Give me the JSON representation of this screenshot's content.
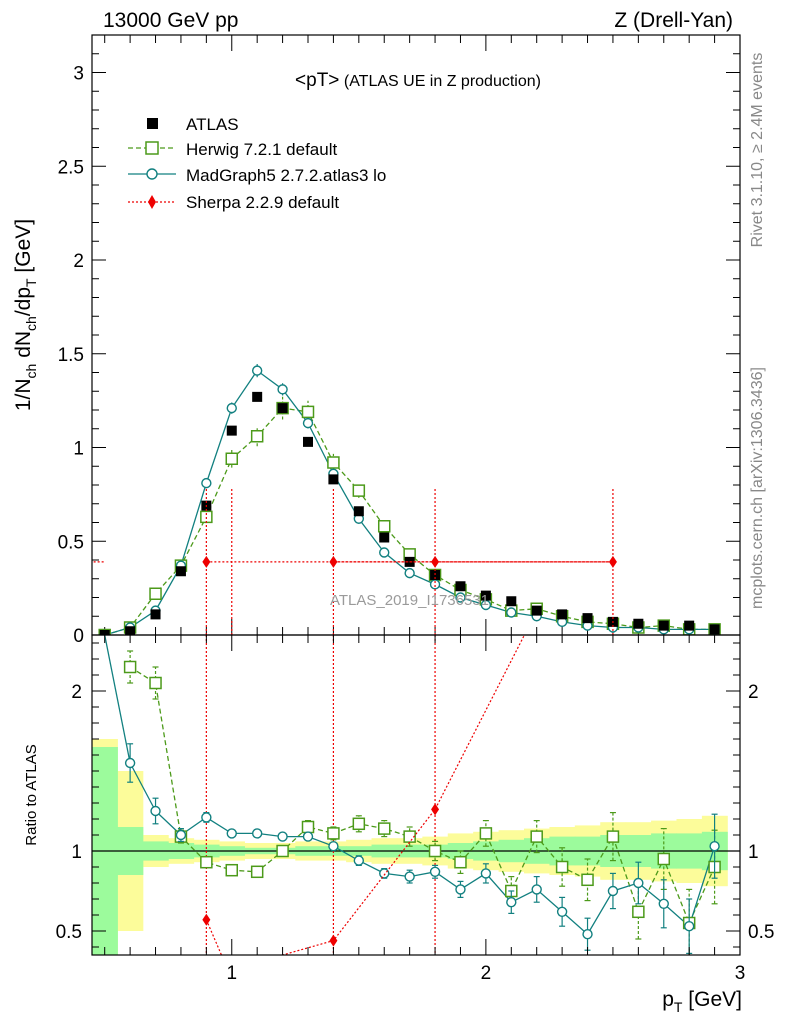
{
  "header": {
    "left": "13000 GeV pp",
    "right": "Z (Drell-Yan)"
  },
  "side": {
    "rivet": "Rivet 3.1.10, ≥ 2.4M events",
    "mcplots": "mcplots.cern.ch [arXiv:1306.3436]"
  },
  "colors": {
    "atlas": "#000000",
    "herwig": "#4c9a1a",
    "madgraph": "#128080",
    "sherpa": "#ee0000",
    "band_inner": "#9cfb9c",
    "band_outer": "#fcfc9a"
  },
  "chart_data": [
    {
      "type": "line",
      "panel": "main",
      "title": "<pT> (ATLAS UE in Z production)",
      "title_main": "<pT>",
      "title_sub": "(ATLAS UE in Z production)",
      "ylabel": "1/N_ch dN_ch/dp_T [GeV]",
      "xlabel": "",
      "xlim": [
        0.45,
        3.0
      ],
      "ylim": [
        0,
        3.2
      ],
      "yticks": [
        "0",
        "0.5",
        "1",
        "1.5",
        "2",
        "2.5",
        "3"
      ],
      "watermark": "ATLAS_2019_I1736531",
      "x": [
        0.5,
        0.6,
        0.7,
        0.8,
        0.9,
        1.0,
        1.1,
        1.2,
        1.3,
        1.4,
        1.5,
        1.6,
        1.7,
        1.8,
        1.9,
        2.0,
        2.1,
        2.2,
        2.3,
        2.4,
        2.5,
        2.6,
        2.7,
        2.8,
        2.9
      ],
      "series": [
        {
          "name": "ATLAS",
          "style": "data",
          "values": [
            0.0,
            0.02,
            0.11,
            0.34,
            0.69,
            1.09,
            1.27,
            1.21,
            1.03,
            0.83,
            0.66,
            0.52,
            0.39,
            0.32,
            0.26,
            0.21,
            0.18,
            0.13,
            0.11,
            0.09,
            0.07,
            0.06,
            0.05,
            0.05,
            0.03
          ]
        },
        {
          "name": "Herwig 7.2.1 default",
          "style": "herwig",
          "values": [
            0.0,
            0.04,
            0.22,
            0.37,
            0.63,
            0.94,
            1.06,
            1.21,
            1.19,
            0.92,
            0.77,
            0.58,
            0.43,
            0.32,
            0.24,
            0.19,
            0.13,
            0.14,
            0.1,
            0.07,
            0.06,
            0.04,
            0.05,
            0.03,
            0.03
          ]
        },
        {
          "name": "MadGraph5 2.7.2.atlas3 lo",
          "style": "madgraph",
          "values": [
            0.0,
            0.04,
            0.13,
            0.37,
            0.81,
            1.21,
            1.41,
            1.31,
            1.13,
            0.86,
            0.62,
            0.44,
            0.33,
            0.27,
            0.2,
            0.16,
            0.12,
            0.1,
            0.07,
            0.05,
            0.04,
            0.04,
            0.03,
            0.03,
            0.03
          ]
        },
        {
          "name": "Sherpa 2.2.9 default",
          "style": "sherpa",
          "x": [
            0.9,
            1.4,
            1.8,
            2.5
          ],
          "xerr": [
            [
              0.0,
              0.5
            ],
            [
              0.9,
              1.8
            ],
            [
              1.4,
              2.5
            ],
            [
              1.8,
              2.5
            ]
          ],
          "values": [
            0.39,
            0.39,
            0.39,
            0.39
          ],
          "yerr_high": 0.78
        }
      ]
    },
    {
      "type": "line",
      "panel": "ratio",
      "ylabel": "Ratio to ATLAS",
      "xlabel": "p_T [GeV]",
      "xlim": [
        0.45,
        3.0
      ],
      "ylim": [
        0.35,
        2.35
      ],
      "xticks": [
        "1",
        "2",
        "3"
      ],
      "yticks": [
        "0.5",
        "1",
        "2"
      ],
      "x": [
        0.5,
        0.6,
        0.7,
        0.8,
        0.9,
        1.0,
        1.1,
        1.2,
        1.3,
        1.4,
        1.5,
        1.6,
        1.7,
        1.8,
        1.9,
        2.0,
        2.1,
        2.2,
        2.3,
        2.4,
        2.5,
        2.6,
        2.7,
        2.8,
        2.9
      ],
      "band_inner": [
        0.65,
        0.15,
        0.06,
        0.05,
        0.04,
        0.03,
        0.02,
        0.02,
        0.03,
        0.03,
        0.03,
        0.04,
        0.04,
        0.04,
        0.05,
        0.06,
        0.07,
        0.08,
        0.09,
        0.09,
        0.1,
        0.1,
        0.11,
        0.11,
        0.12
      ],
      "band_outer": [
        0.7,
        0.5,
        0.1,
        0.08,
        0.07,
        0.06,
        0.05,
        0.05,
        0.06,
        0.06,
        0.07,
        0.08,
        0.08,
        0.09,
        0.11,
        0.12,
        0.13,
        0.14,
        0.15,
        0.16,
        0.18,
        0.18,
        0.19,
        0.2,
        0.22
      ],
      "series": [
        {
          "name": "Herwig 7.2.1 default",
          "style": "herwig",
          "values": [
            null,
            2.15,
            2.05,
            1.09,
            0.93,
            0.88,
            0.87,
            1.0,
            1.15,
            1.11,
            1.17,
            1.14,
            1.09,
            1.0,
            0.93,
            1.11,
            0.75,
            1.09,
            0.9,
            0.82,
            1.09,
            0.62,
            0.95,
            0.55,
            0.9
          ],
          "err": [
            0,
            0.1,
            0.1,
            0.04,
            0.03,
            0.03,
            0.03,
            0.03,
            0.04,
            0.04,
            0.05,
            0.05,
            0.06,
            0.06,
            0.07,
            0.08,
            0.09,
            0.1,
            0.12,
            0.13,
            0.15,
            0.17,
            0.19,
            0.21,
            0.23
          ]
        },
        {
          "name": "MadGraph5 2.7.2.atlas3 lo",
          "style": "madgraph",
          "values": [
            null,
            1.55,
            1.25,
            1.1,
            1.21,
            1.11,
            1.11,
            1.09,
            1.09,
            1.03,
            0.94,
            0.86,
            0.84,
            0.87,
            0.76,
            0.86,
            0.68,
            0.76,
            0.62,
            0.48,
            0.75,
            0.8,
            0.67,
            0.53,
            1.03
          ],
          "err": [
            0,
            0.12,
            0.08,
            0.04,
            0.03,
            0.02,
            0.02,
            0.02,
            0.02,
            0.02,
            0.03,
            0.03,
            0.04,
            0.04,
            0.05,
            0.06,
            0.07,
            0.08,
            0.09,
            0.1,
            0.11,
            0.13,
            0.15,
            0.17,
            0.2
          ]
        },
        {
          "name": "Sherpa 2.2.9 default",
          "style": "sherpa",
          "x": [
            0.9,
            1.4,
            1.8
          ],
          "values": [
            0.57,
            0.44,
            1.26
          ]
        }
      ]
    }
  ]
}
